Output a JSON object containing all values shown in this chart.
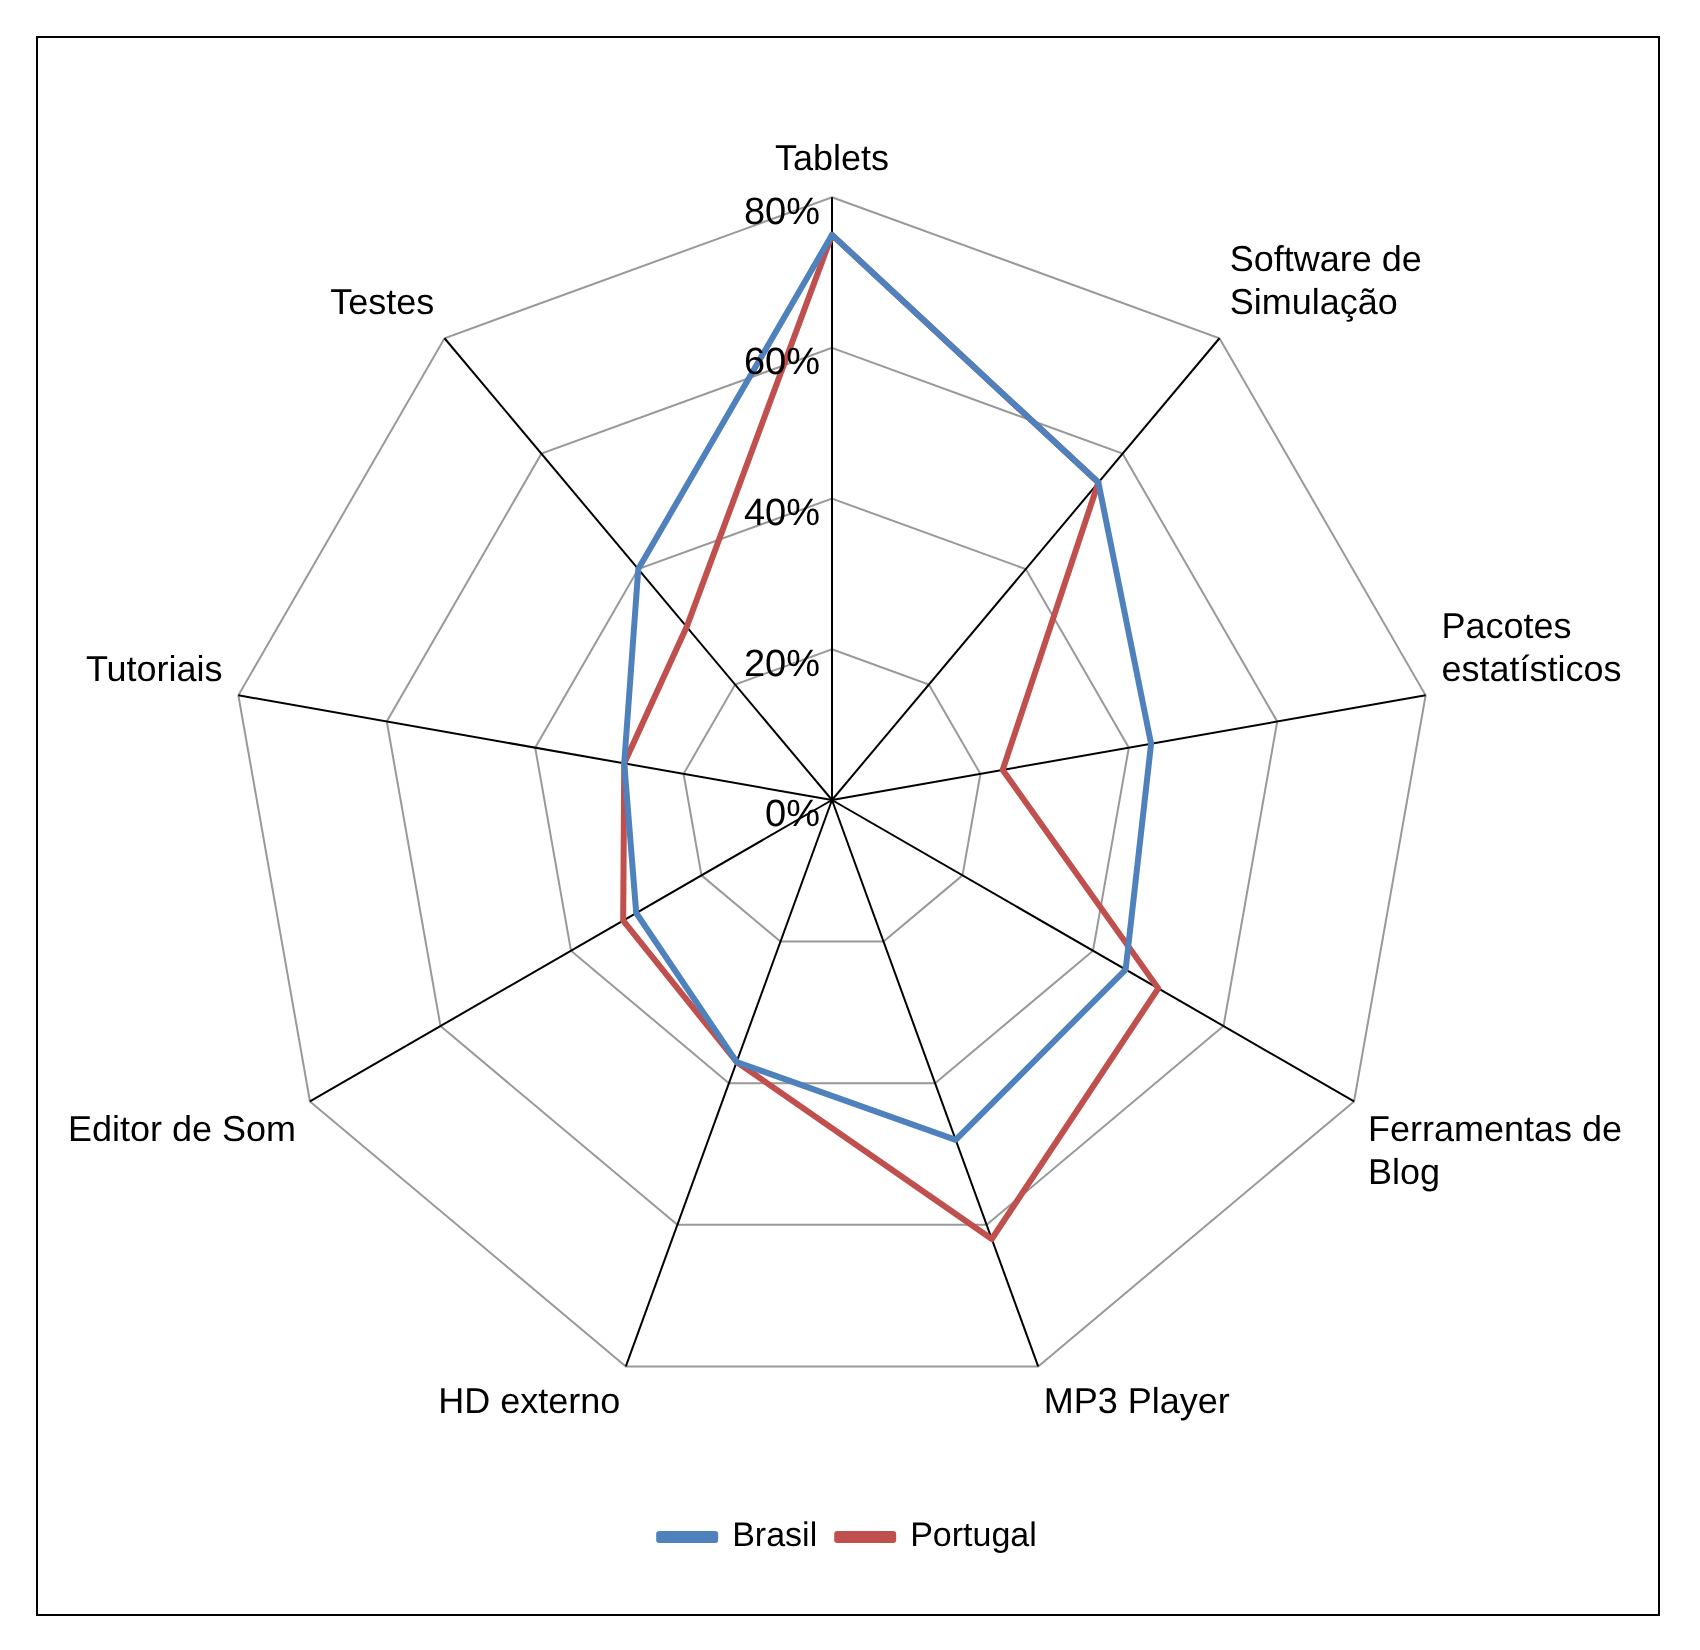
{
  "chart_data": {
    "type": "radar",
    "categories": [
      "Tablets",
      "Software de Simulação",
      "Pacotes estatísticos",
      "Ferramentas de Blog",
      "MP3 Player",
      "HD externo",
      "Editor de Som",
      "Tutoriais",
      "Testes"
    ],
    "series": [
      {
        "name": "Brasil",
        "color": "#4f81bd",
        "values": [
          75,
          55,
          43,
          45,
          48,
          37,
          30,
          28,
          40
        ]
      },
      {
        "name": "Portugal",
        "color": "#c0504d",
        "values": [
          75,
          55,
          23,
          50,
          62,
          37,
          32,
          28,
          30
        ]
      }
    ],
    "ylim": [
      0,
      80
    ],
    "yticks": [
      {
        "value": 0,
        "label": "0%"
      },
      {
        "value": 20,
        "label": "20%"
      },
      {
        "value": 40,
        "label": "40%"
      },
      {
        "value": 60,
        "label": "60%"
      },
      {
        "value": 80,
        "label": "80%"
      }
    ],
    "grid": true,
    "legend": "bottom",
    "marker": "none",
    "line_style": "solid"
  }
}
